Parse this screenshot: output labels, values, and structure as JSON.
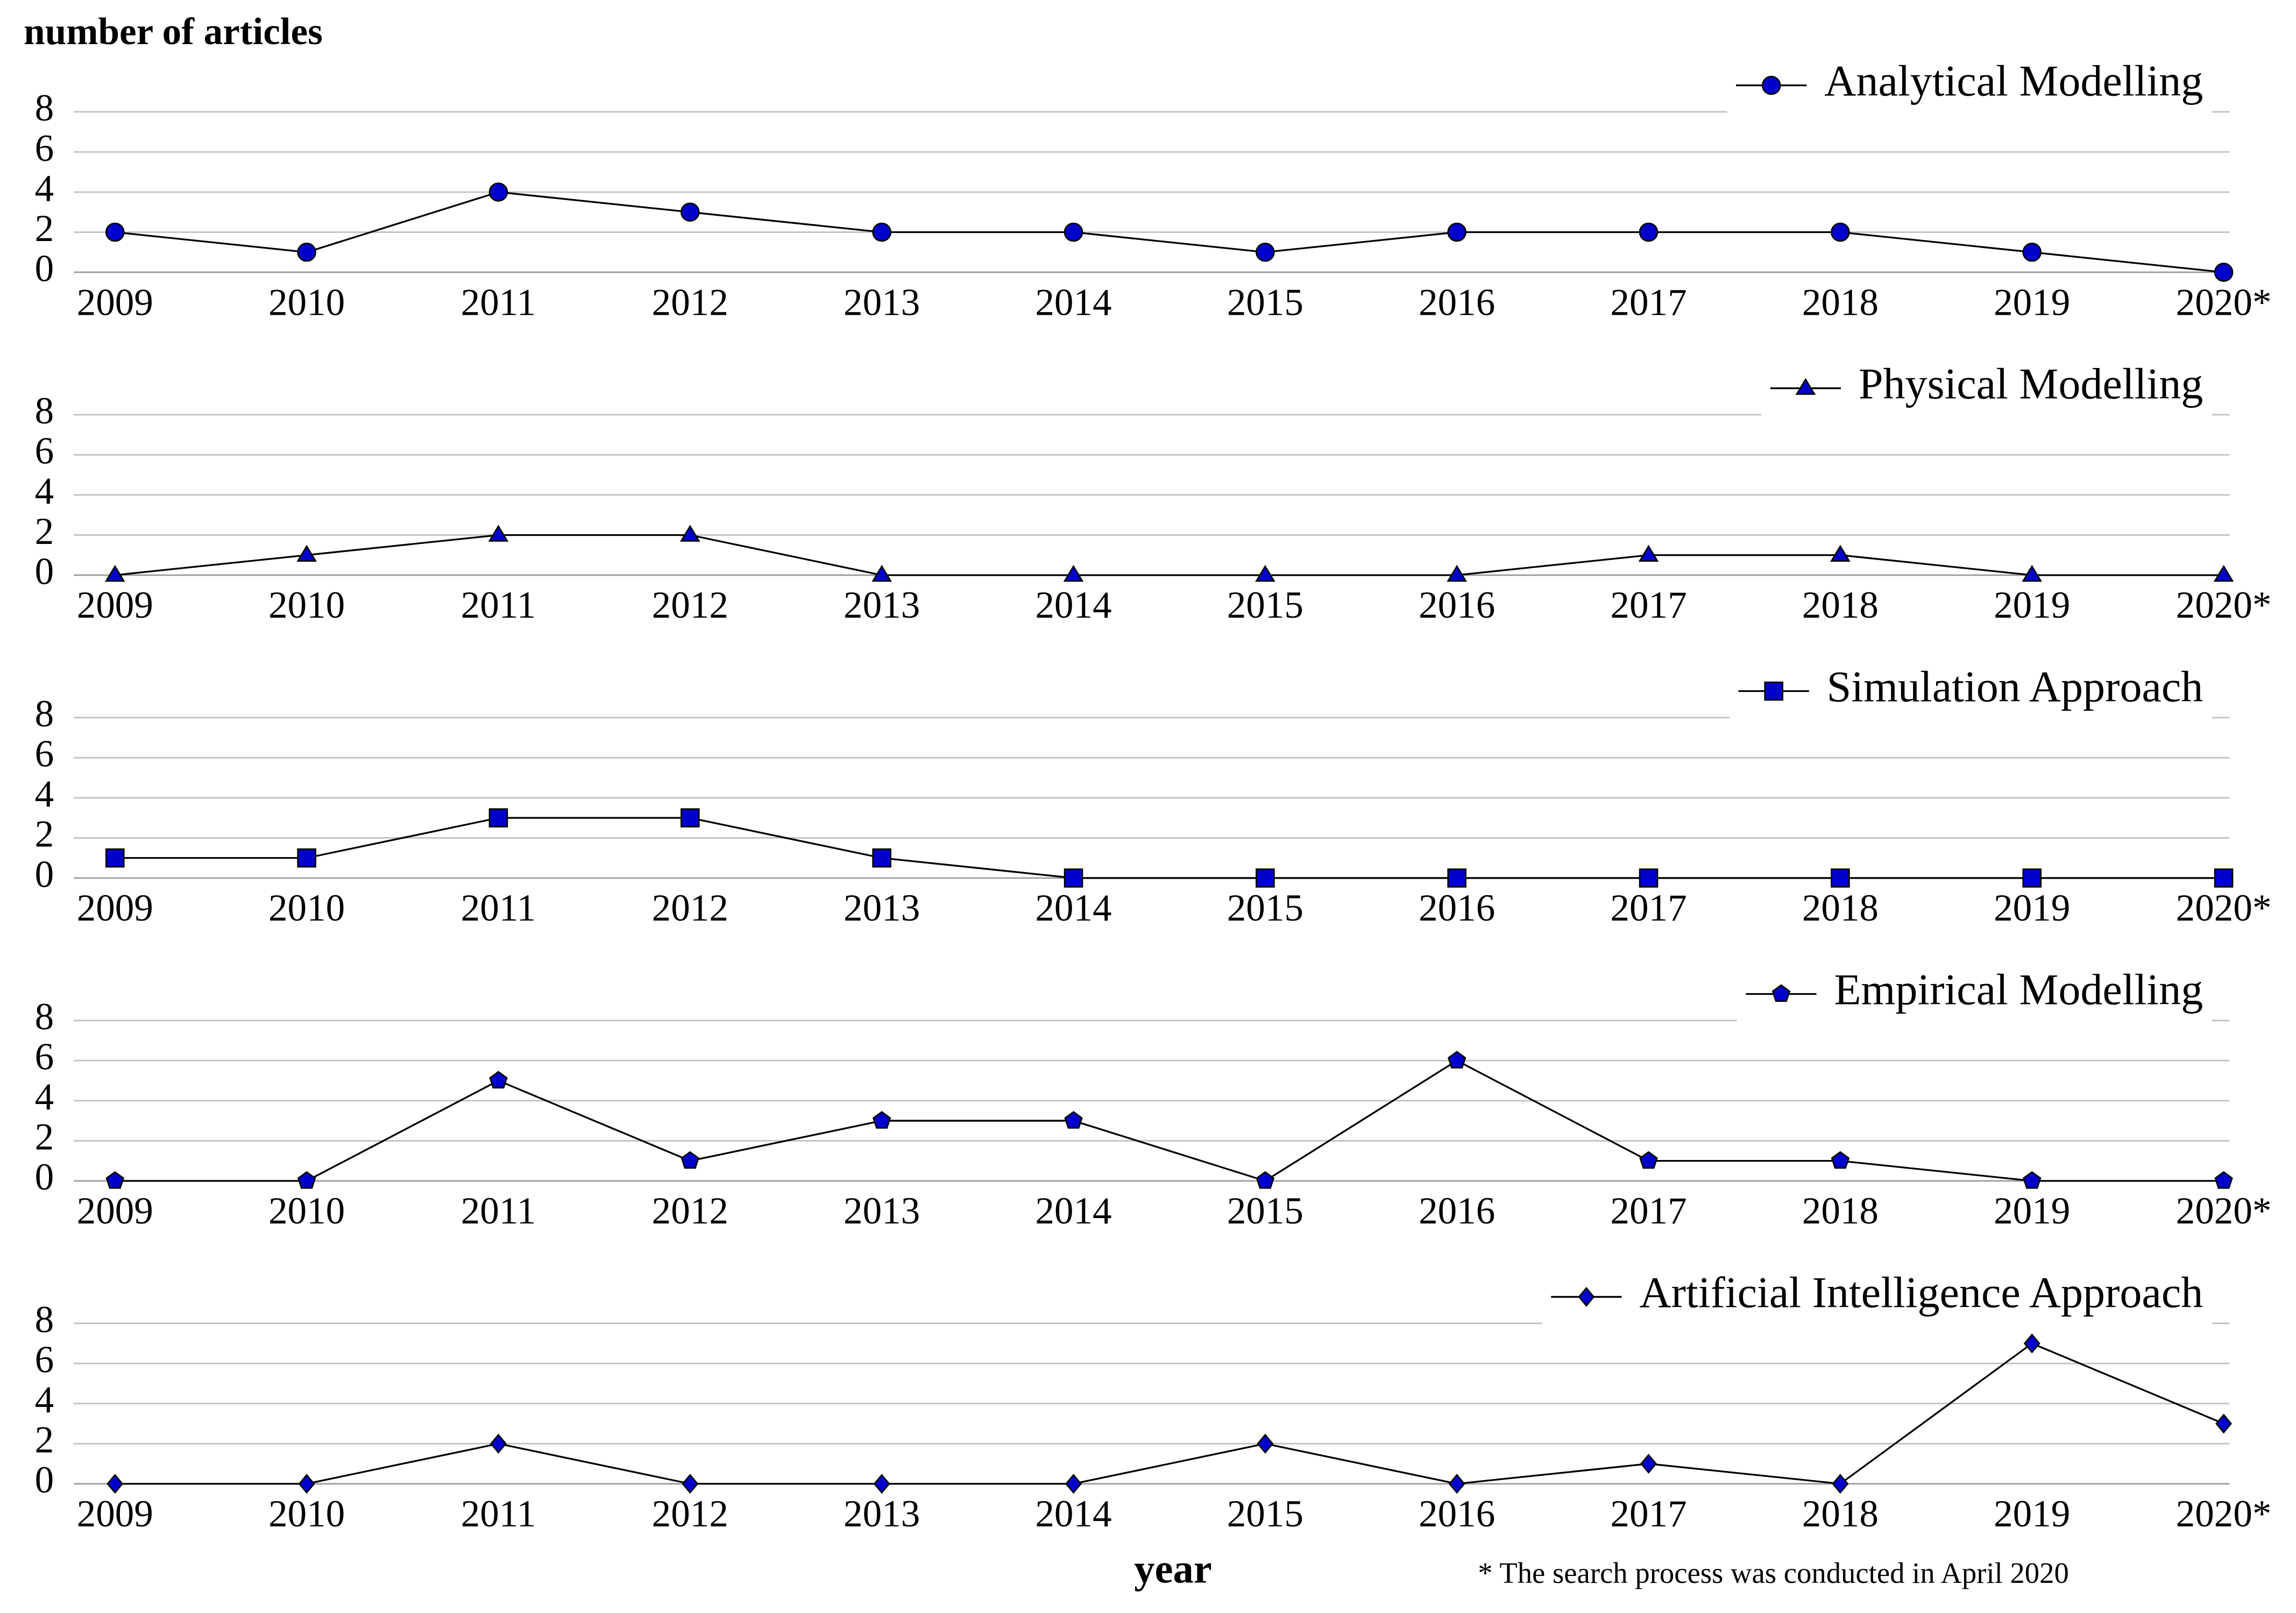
{
  "y_label": "number of articles",
  "x_label": "year",
  "note": "* The search process was conducted in April 2020",
  "chart_data": [
    {
      "type": "line",
      "categories": [
        "2009",
        "2010",
        "2011",
        "2012",
        "2013",
        "2014",
        "2015",
        "2016",
        "2017",
        "2018",
        "2019",
        "2020*"
      ],
      "series": [
        {
          "name": "Analytical Modelling",
          "color": "#0000cc",
          "marker": "circle",
          "values": [
            2,
            1,
            4,
            3,
            2,
            2,
            1,
            2,
            2,
            2,
            1,
            0
          ]
        }
      ],
      "ylim": [
        0,
        8
      ],
      "yticks": [
        0,
        2,
        4,
        6,
        8
      ],
      "grid": true,
      "legend": "top-right"
    },
    {
      "type": "line",
      "categories": [
        "2009",
        "2010",
        "2011",
        "2012",
        "2013",
        "2014",
        "2015",
        "2016",
        "2017",
        "2018",
        "2019",
        "2020*"
      ],
      "series": [
        {
          "name": "Physical Modelling",
          "color": "#0000cc",
          "marker": "triangle",
          "values": [
            0,
            1,
            2,
            2,
            0,
            0,
            0,
            0,
            1,
            1,
            0,
            0
          ]
        }
      ],
      "ylim": [
        0,
        8
      ],
      "yticks": [
        0,
        2,
        4,
        6,
        8
      ],
      "grid": true,
      "legend": "top-right"
    },
    {
      "type": "line",
      "categories": [
        "2009",
        "2010",
        "2011",
        "2012",
        "2013",
        "2014",
        "2015",
        "2016",
        "2017",
        "2018",
        "2019",
        "2020*"
      ],
      "series": [
        {
          "name": "Simulation Approach",
          "color": "#0000cc",
          "marker": "square",
          "values": [
            1,
            1,
            3,
            3,
            1,
            0,
            0,
            0,
            0,
            0,
            0,
            0
          ]
        }
      ],
      "ylim": [
        0,
        8
      ],
      "yticks": [
        0,
        2,
        4,
        6,
        8
      ],
      "grid": true,
      "legend": "top-right"
    },
    {
      "type": "line",
      "categories": [
        "2009",
        "2010",
        "2011",
        "2012",
        "2013",
        "2014",
        "2015",
        "2016",
        "2017",
        "2018",
        "2019",
        "2020*"
      ],
      "series": [
        {
          "name": "Empirical Modelling",
          "color": "#0000cc",
          "marker": "pentagon",
          "values": [
            0,
            0,
            5,
            1,
            3,
            3,
            0,
            6,
            1,
            1,
            0,
            0
          ]
        }
      ],
      "ylim": [
        0,
        8
      ],
      "yticks": [
        0,
        2,
        4,
        6,
        8
      ],
      "grid": true,
      "legend": "top-right"
    },
    {
      "type": "line",
      "categories": [
        "2009",
        "2010",
        "2011",
        "2012",
        "2013",
        "2014",
        "2015",
        "2016",
        "2017",
        "2018",
        "2019",
        "2020*"
      ],
      "series": [
        {
          "name": "Artificial Intelligence Approach",
          "color": "#0000cc",
          "marker": "diamond",
          "values": [
            0,
            0,
            2,
            0,
            0,
            0,
            2,
            0,
            1,
            0,
            7,
            3
          ]
        }
      ],
      "ylim": [
        0,
        8
      ],
      "yticks": [
        0,
        2,
        4,
        6,
        8
      ],
      "grid": true,
      "legend": "top-right"
    }
  ]
}
